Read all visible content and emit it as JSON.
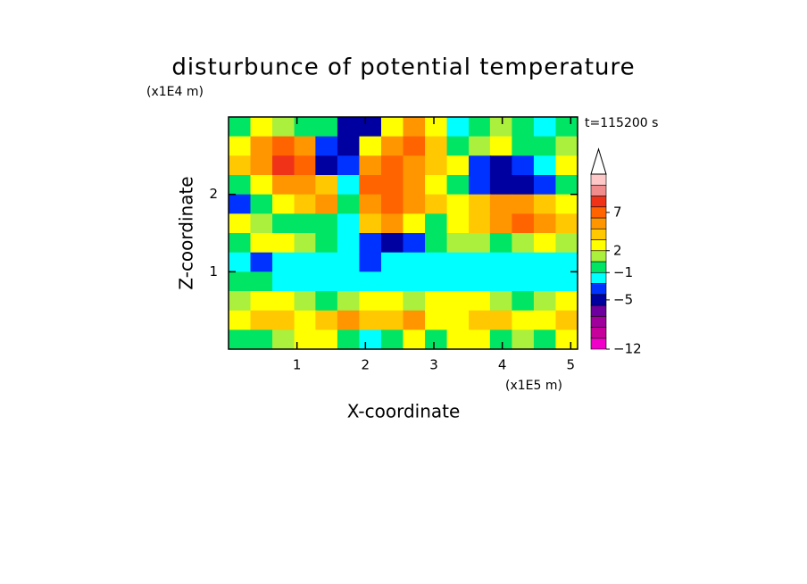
{
  "chart_data": {
    "type": "contour",
    "title": "disturbunce of potential temperature",
    "xlabel": "X-coordinate",
    "ylabel": "Z-coordinate",
    "xunit": "(x1E5 m)",
    "yunit": "(x1E4 m)",
    "annotation": "t=115200 s",
    "xlim": [
      0,
      5.1
    ],
    "ylim": [
      0,
      3
    ],
    "xticks": [
      1,
      2,
      3,
      4,
      5
    ],
    "yticks": [
      1,
      2
    ],
    "x": [
      0.16,
      0.48,
      0.8,
      1.12,
      1.43,
      1.75,
      2.07,
      2.39,
      2.71,
      3.03,
      3.35,
      3.67,
      3.98,
      4.3,
      4.62,
      4.94
    ],
    "y": [
      2.875,
      2.625,
      2.375,
      2.125,
      1.875,
      1.625,
      1.375,
      1.125,
      0.875,
      0.625,
      0.375,
      0.125
    ],
    "z": [
      [
        0,
        2.5,
        1.5,
        0,
        0,
        -5,
        -5,
        2.5,
        5,
        2.5,
        -1.5,
        0,
        1.5,
        0,
        -1.5,
        0
      ],
      [
        2.5,
        5,
        7,
        5,
        -3,
        -5,
        2.5,
        5,
        7,
        3.5,
        0,
        1.5,
        2.5,
        0,
        0,
        1.5
      ],
      [
        3.5,
        5,
        9,
        7,
        -5,
        -3,
        5,
        7,
        5,
        3.5,
        2.5,
        -3,
        -5,
        -3,
        -1.5,
        2.5
      ],
      [
        0,
        2.5,
        5,
        5,
        3.5,
        -1.5,
        7,
        7,
        5,
        2.5,
        0,
        -3,
        -5,
        -5,
        -3,
        0
      ],
      [
        -3,
        0,
        2.5,
        3.5,
        5,
        0,
        5,
        7,
        5,
        3.5,
        2.5,
        3.5,
        5,
        5,
        3.5,
        2.5
      ],
      [
        2.5,
        1.5,
        0,
        0,
        0,
        -1.5,
        3.5,
        5,
        2.5,
        0,
        2.5,
        3.5,
        5,
        7,
        5,
        3.5
      ],
      [
        0,
        2.5,
        2.5,
        1.5,
        0,
        -1.5,
        -3,
        -5,
        -3,
        0,
        1.5,
        1.5,
        0,
        1.5,
        2.5,
        1.5
      ],
      [
        -1.5,
        -3,
        -1.5,
        -1.5,
        -1.5,
        -1.5,
        -3,
        -1.5,
        -1.5,
        -1.5,
        -1.5,
        -1.5,
        -1.5,
        -1.5,
        -1.5,
        -1.5
      ],
      [
        0,
        0,
        -1.5,
        -1.5,
        -1.5,
        -1.5,
        -1.5,
        -1.5,
        -1.5,
        -1.5,
        -1.5,
        -1.5,
        -1.5,
        -1.5,
        -1.5,
        -1.5
      ],
      [
        1.5,
        2.5,
        2.5,
        1.5,
        0,
        1.5,
        2.5,
        2.5,
        1.5,
        2.5,
        2.5,
        2.5,
        1.5,
        0,
        1.5,
        2.5
      ],
      [
        2.5,
        3.5,
        3.5,
        2.5,
        3.5,
        5,
        3.5,
        3.5,
        5,
        2.5,
        2.5,
        3.5,
        3.5,
        2.5,
        2.5,
        3.5
      ],
      [
        0,
        0,
        1.5,
        2.5,
        2.5,
        0,
        -1.5,
        0,
        2.5,
        0,
        2.5,
        2.5,
        0,
        1.5,
        0,
        2.5
      ]
    ],
    "levels": [
      -12,
      -10,
      -8,
      -7,
      -6,
      -4,
      -2,
      -1,
      1,
      2,
      3,
      4,
      6,
      8,
      10,
      12,
      14
    ],
    "colors": [
      "#f000c8",
      "#c8009b",
      "#a0009b",
      "#6e00a0",
      "#0000a0",
      "#0032ff",
      "#00ffff",
      "#00e664",
      "#aaf03c",
      "#ffff00",
      "#ffc800",
      "#ff9600",
      "#ff6400",
      "#f03219",
      "#f08c8c",
      "#ffc8c8"
    ],
    "colorbar_ticks": [
      {
        "value": -12,
        "label": "−12"
      },
      {
        "value": -5,
        "label": "−5"
      },
      {
        "value": -1,
        "label": "−1"
      },
      2,
      7
    ]
  }
}
